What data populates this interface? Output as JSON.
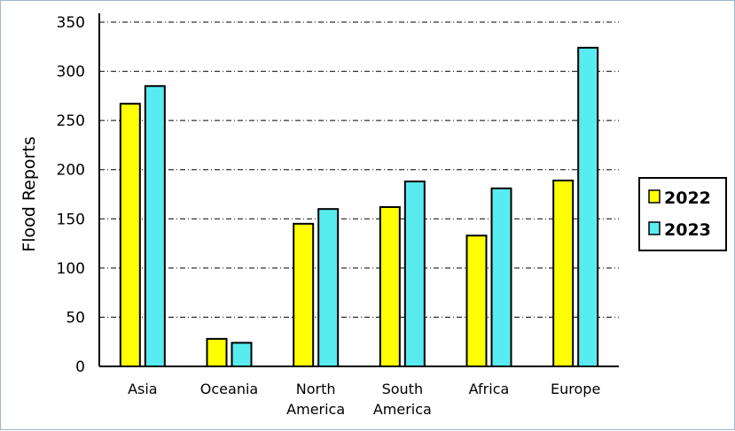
{
  "chart_data": {
    "type": "bar",
    "title": "",
    "xlabel": "",
    "ylabel": "Flood Reports",
    "ylim": [
      0,
      350
    ],
    "yticks": [
      "0",
      "50",
      "100",
      "150",
      "200",
      "250",
      "300",
      "350"
    ],
    "grid": true,
    "legend_position": "right",
    "categories": [
      [
        "Asia"
      ],
      [
        "Oceania"
      ],
      [
        "North",
        "America"
      ],
      [
        "South",
        "America"
      ],
      [
        "Africa"
      ],
      [
        "Europe"
      ]
    ],
    "series": [
      {
        "name": "2022",
        "color": "#ffff00",
        "values": [
          267,
          28,
          145,
          162,
          133,
          189
        ]
      },
      {
        "name": "2023",
        "color": "#58ebf0",
        "values": [
          285,
          24,
          160,
          188,
          181,
          324
        ]
      }
    ]
  }
}
